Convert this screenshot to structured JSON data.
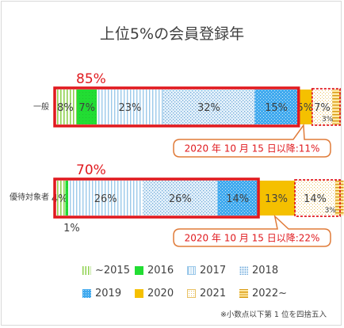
{
  "chart_data": {
    "type": "bar",
    "orientation": "horizontal",
    "stacked": true,
    "title": "上位5%の会員登録年",
    "categories": [
      "一般",
      "優待対象者"
    ],
    "series": [
      {
        "name": "~2015",
        "values": [
          8,
          4
        ],
        "labels": [
          "8%",
          "4%"
        ],
        "color": "#d8f0a8",
        "pattern": "vlines-green"
      },
      {
        "name": "2016",
        "values": [
          7,
          1
        ],
        "labels": [
          "7%",
          "1%"
        ],
        "color": "#22dd33",
        "pattern": "solid-green"
      },
      {
        "name": "2017",
        "values": [
          23,
          26
        ],
        "labels": [
          "23%",
          "26%"
        ],
        "color": "#c8e6f8",
        "pattern": "vlines-blue"
      },
      {
        "name": "2018",
        "values": [
          32,
          26
        ],
        "labels": [
          "32%",
          "26%"
        ],
        "color": "#bcd8ee",
        "pattern": "dots-blue"
      },
      {
        "name": "2019",
        "values": [
          15,
          14
        ],
        "labels": [
          "15%",
          "14%"
        ],
        "color": "#3fa9ee",
        "pattern": "dots-white"
      },
      {
        "name": "2020",
        "values": [
          5,
          13
        ],
        "labels": [
          "5%",
          "13%"
        ],
        "color": "#f5c000",
        "pattern": "solid-yellow"
      },
      {
        "name": "2021",
        "values": [
          7,
          14
        ],
        "labels": [
          "7%",
          "14%"
        ],
        "color": "#fff8d8",
        "pattern": "dots-yellow"
      },
      {
        "name": "2022~",
        "values": [
          3,
          3
        ],
        "labels": [
          "3%",
          "3%"
        ],
        "color": "#f0b820",
        "pattern": "hlines-orange"
      }
    ],
    "xlim": [
      0,
      100
    ],
    "legend_position": "bottom",
    "annotations": {
      "group_totals": [
        "85%",
        "70%"
      ],
      "callouts": [
        "2020 年 10 月 15 日以降:11%",
        "2020 年 10 月 15 日以降:22%"
      ],
      "highlight_color": "#e0191e",
      "callout_color": "#e07b39"
    },
    "note": "※小数点以下第 1 位を四捨五入"
  }
}
